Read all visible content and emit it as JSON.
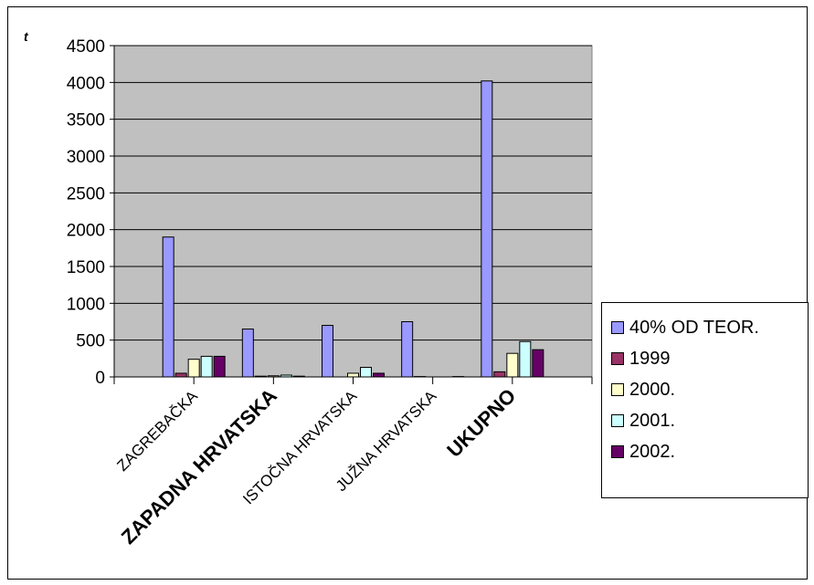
{
  "chart_data": {
    "type": "bar",
    "ylabel": "t",
    "ylim": [
      0,
      4500
    ],
    "yticks": [
      0,
      500,
      1000,
      1500,
      2000,
      2500,
      3000,
      3500,
      4000,
      4500
    ],
    "grid": true,
    "legend_position": "right",
    "categories": [
      "ZAGREBAČKA",
      "ZAPADNA HRVATSKA",
      "ISTOČNA HRVATSKA",
      "JUŽNA HRVATSKA",
      "UKUPNO"
    ],
    "series": [
      {
        "name": "40% OD TEOR.",
        "color": "#9999ff",
        "values": [
          1900,
          650,
          700,
          750,
          4020
        ]
      },
      {
        "name": "1999",
        "color": "#993366",
        "values": [
          50,
          10,
          0,
          5,
          70
        ]
      },
      {
        "name": "2000.",
        "color": "#ffffcc",
        "values": [
          240,
          15,
          50,
          0,
          320
        ]
      },
      {
        "name": "2001.",
        "color": "#ccffff",
        "values": [
          280,
          25,
          130,
          0,
          480
        ]
      },
      {
        "name": "2002.",
        "color": "#660066",
        "values": [
          280,
          10,
          50,
          5,
          370
        ]
      }
    ]
  }
}
